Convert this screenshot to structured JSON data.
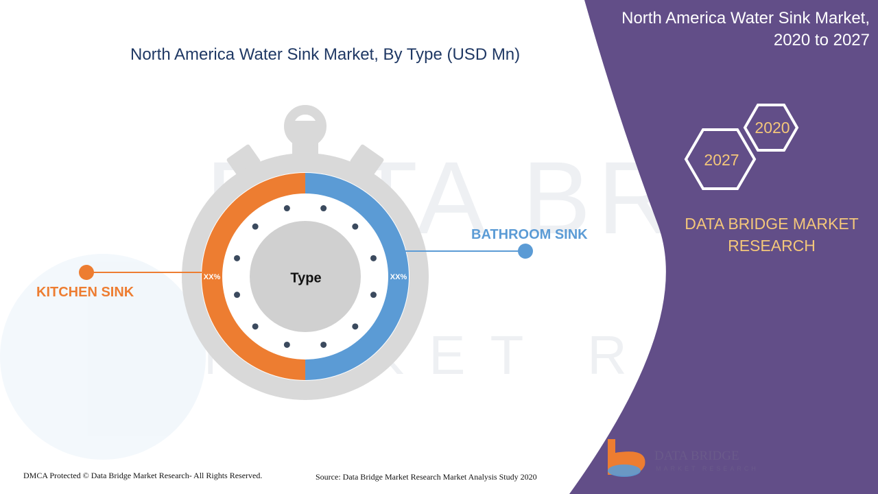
{
  "header": {
    "title_line1": "North America Water Sink Market,",
    "title_line2": "2020 to 2027"
  },
  "hexagons": {
    "start_year": "2020",
    "end_year": "2027"
  },
  "brand": {
    "name_line1": "DATA BRIDGE MARKET",
    "name_line2": "RESEARCH"
  },
  "logo": {
    "text_main": "DATA BRIDGE",
    "text_sub": "MARKET RESEARCH"
  },
  "watermark": {
    "line1": "DATA BRIDGE",
    "line2": "MARKET RESEARCH"
  },
  "footer": {
    "copyright": "DMCA Protected © Data Bridge Market Research- All Rights Reserved.",
    "source": "Source: Data Bridge Market Research Market Analysis Study 2020"
  },
  "colors": {
    "panel": "#624e88",
    "kitchen": "#ed7d31",
    "bathroom": "#5b9bd5",
    "ring": "#d9d9d9",
    "hub": "#d0d0d0",
    "dots": "#3b4a5e",
    "brand_text": "#f4c77a",
    "title": "#1f3864"
  },
  "chart_data": {
    "type": "pie",
    "title": "North America Water Sink Market, By Type (USD Mn)",
    "center_label": "Type",
    "series": [
      {
        "name": "KITCHEN SINK",
        "value": 50,
        "value_label": "XX%",
        "color": "#ed7d31"
      },
      {
        "name": "BATHROOM SINK",
        "value": 50,
        "value_label": "XX%",
        "color": "#5b9bd5"
      }
    ]
  }
}
